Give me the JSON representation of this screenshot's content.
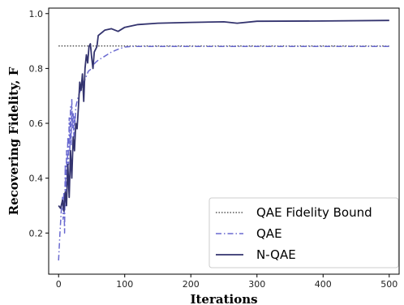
{
  "chart_data": {
    "type": "line",
    "xlabel": "Iterations",
    "ylabel": "Recovering Fidelity, F",
    "xlim": [
      -15,
      515
    ],
    "ylim": [
      0.05,
      1.02
    ],
    "xticks": [
      0,
      100,
      200,
      300,
      400,
      500
    ],
    "yticks": [
      0.2,
      0.4,
      0.6,
      0.8,
      1.0
    ],
    "xtick_labels": [
      "0",
      "100",
      "200",
      "300",
      "400",
      "500"
    ],
    "ytick_labels": [
      "0.2",
      "0.4",
      "0.6",
      "0.8",
      "1.0"
    ],
    "grid": false,
    "legend_position": "lower-right",
    "series": [
      {
        "name": "QAE Fidelity Bound",
        "style": "dotted",
        "color": "#000000",
        "x": [
          0,
          500
        ],
        "y": [
          0.882,
          0.882
        ]
      },
      {
        "name": "QAE",
        "style": "dashdot",
        "color": "#6a6ad0",
        "x": [
          0,
          2,
          4,
          6,
          7,
          8,
          9,
          10,
          11,
          12,
          13,
          14,
          15,
          16,
          17,
          18,
          19,
          20,
          21,
          22,
          23,
          24,
          25,
          26,
          28,
          30,
          33,
          36,
          40,
          45,
          50,
          55,
          60,
          70,
          80,
          90,
          100,
          110,
          150,
          200,
          300,
          400,
          500
        ],
        "y": [
          0.1,
          0.2,
          0.28,
          0.33,
          0.25,
          0.35,
          0.2,
          0.45,
          0.3,
          0.5,
          0.4,
          0.55,
          0.45,
          0.62,
          0.5,
          0.66,
          0.52,
          0.69,
          0.58,
          0.64,
          0.55,
          0.63,
          0.6,
          0.66,
          0.68,
          0.7,
          0.72,
          0.74,
          0.76,
          0.79,
          0.8,
          0.82,
          0.83,
          0.845,
          0.86,
          0.87,
          0.878,
          0.88,
          0.88,
          0.88,
          0.88,
          0.88,
          0.88
        ]
      },
      {
        "name": "N-QAE",
        "style": "solid",
        "color": "#33336e",
        "x": [
          0,
          3,
          6,
          8,
          10,
          12,
          14,
          16,
          18,
          20,
          22,
          24,
          26,
          28,
          30,
          32,
          34,
          36,
          38,
          40,
          42,
          44,
          46,
          48,
          50,
          52,
          54,
          56,
          58,
          60,
          70,
          80,
          90,
          100,
          120,
          150,
          200,
          250,
          270,
          300,
          400,
          500
        ],
        "y": [
          0.3,
          0.29,
          0.32,
          0.28,
          0.35,
          0.3,
          0.45,
          0.33,
          0.5,
          0.4,
          0.55,
          0.5,
          0.6,
          0.58,
          0.66,
          0.75,
          0.72,
          0.78,
          0.68,
          0.8,
          0.85,
          0.82,
          0.88,
          0.89,
          0.84,
          0.8,
          0.86,
          0.87,
          0.88,
          0.92,
          0.94,
          0.945,
          0.935,
          0.95,
          0.96,
          0.965,
          0.968,
          0.97,
          0.965,
          0.972,
          0.973,
          0.975
        ]
      }
    ]
  },
  "colors": {
    "axes": "#000000",
    "background": "#ffffff"
  }
}
